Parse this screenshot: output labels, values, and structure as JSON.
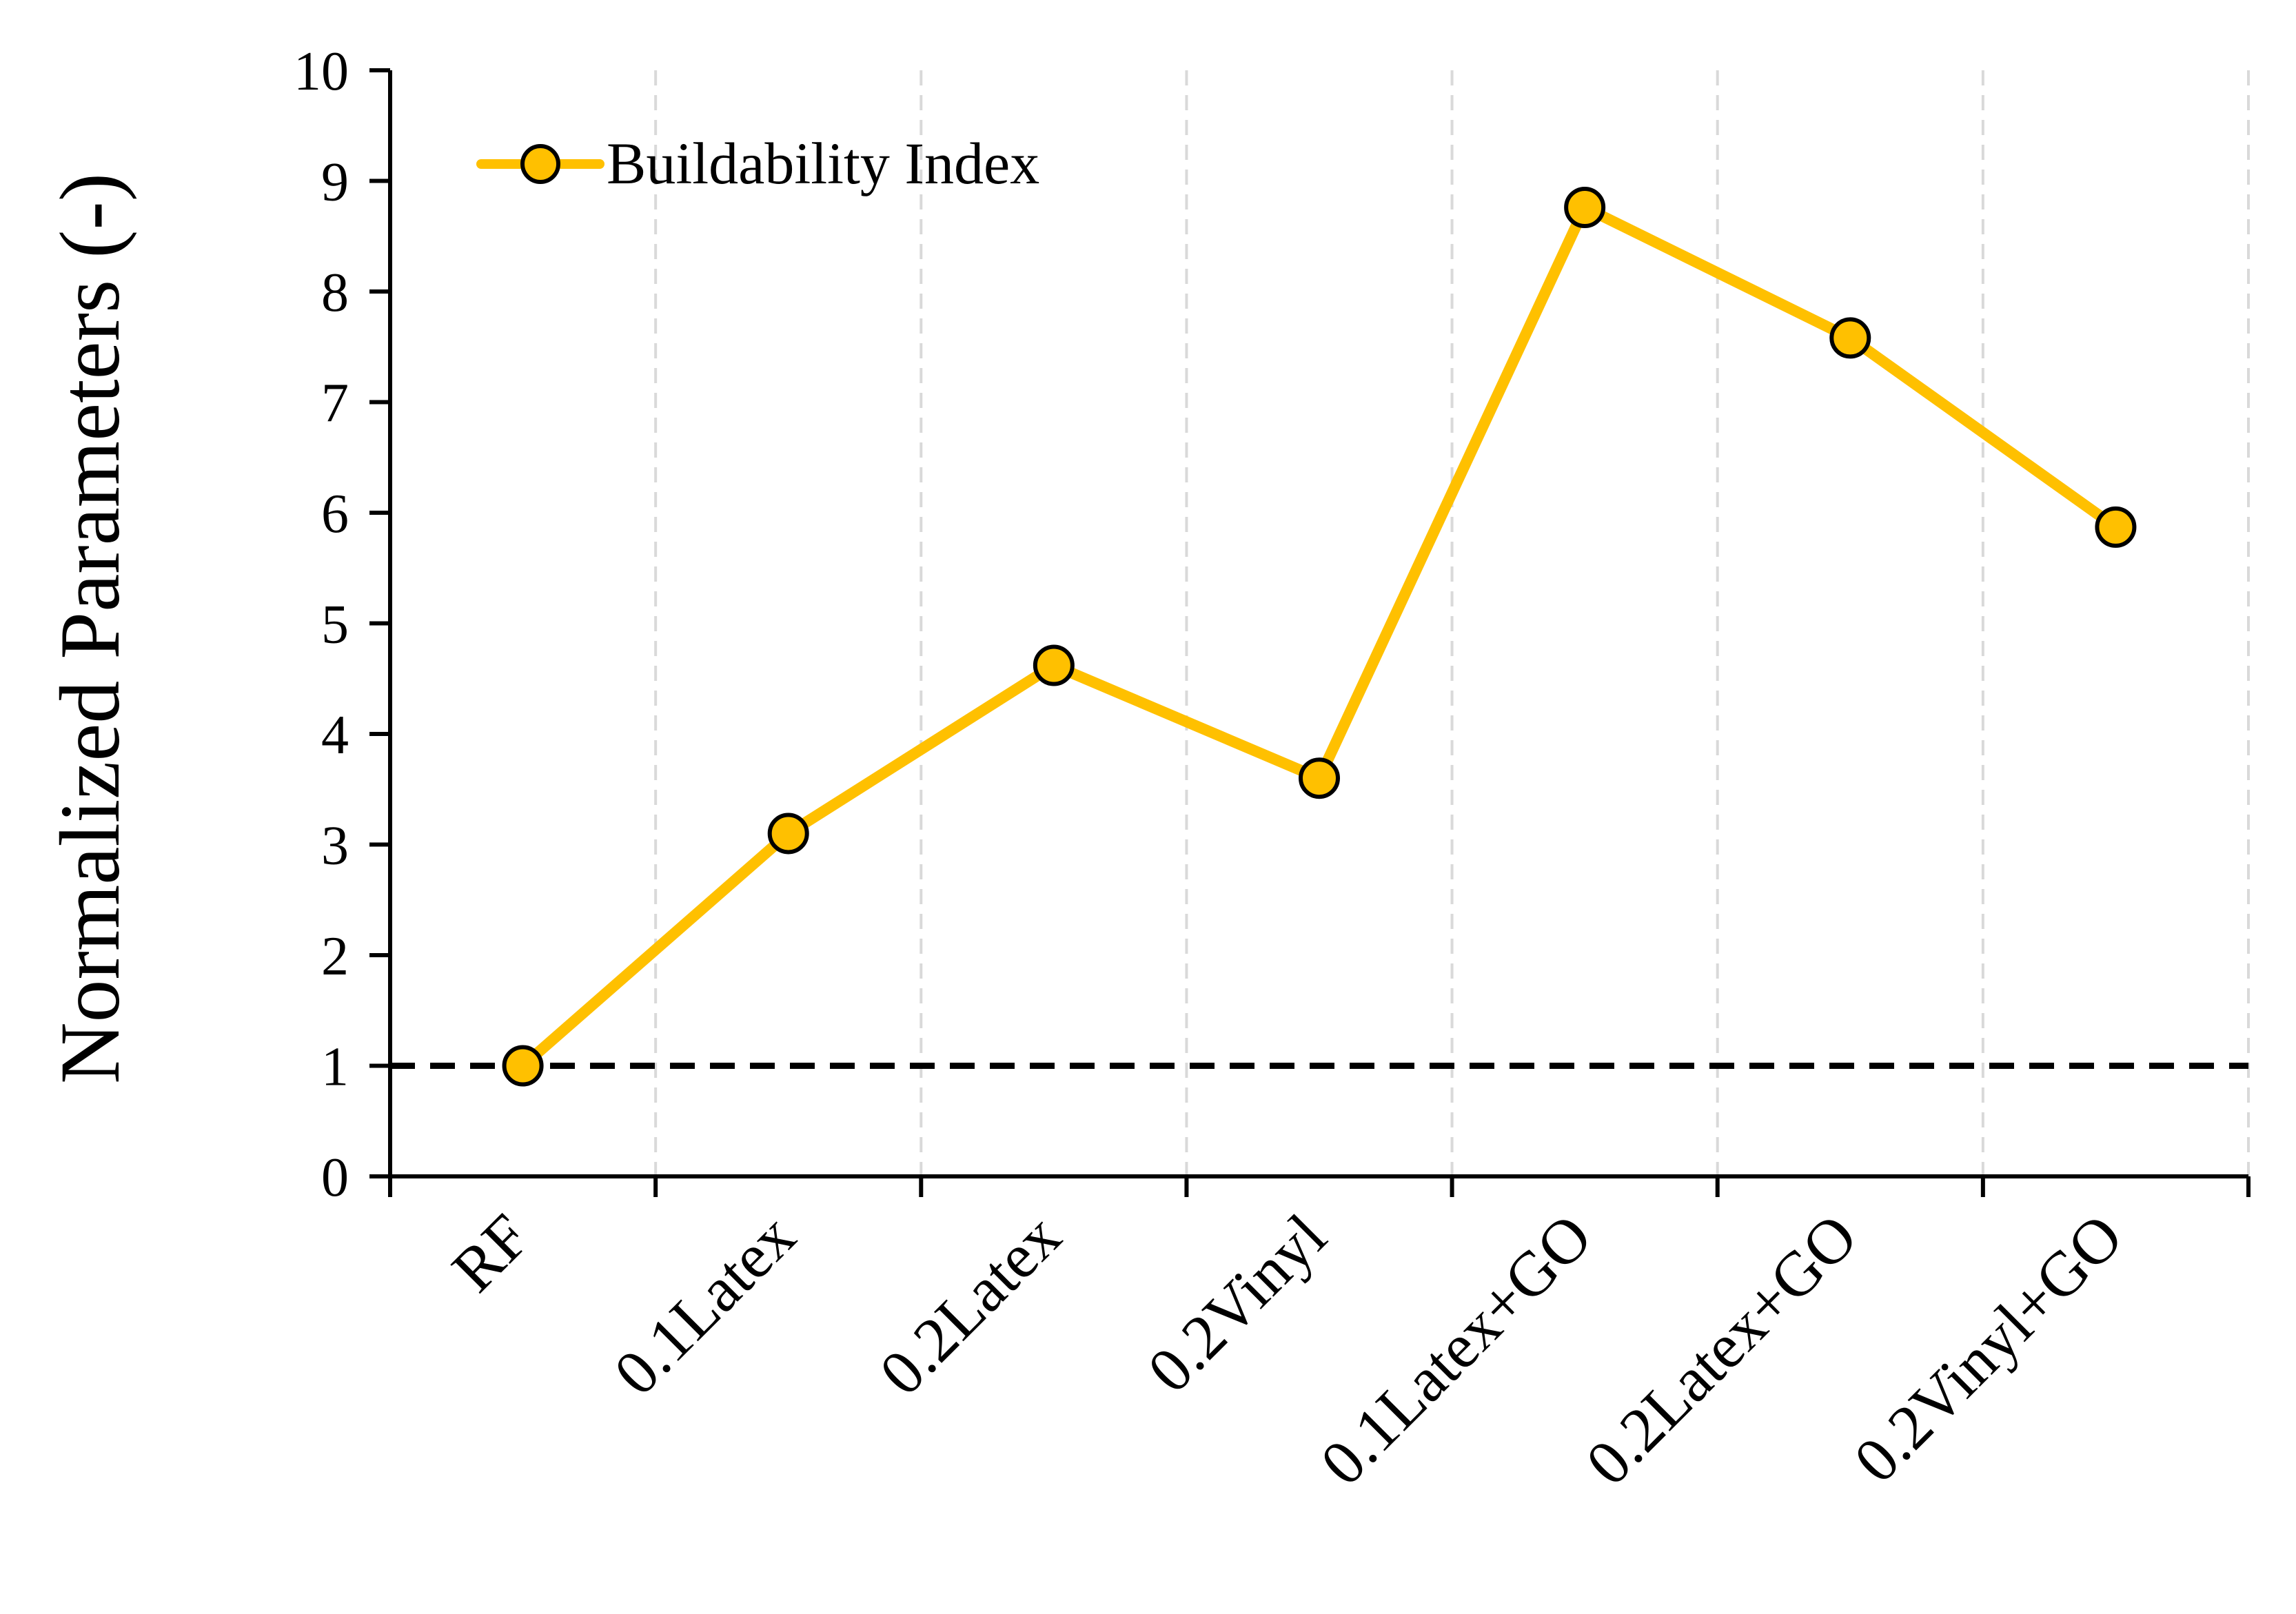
{
  "chart_data": {
    "type": "line",
    "title": "",
    "xlabel": "",
    "ylabel": "Normalized Parameters (-)",
    "ylim": [
      0,
      10
    ],
    "yticks": [
      "0",
      "1",
      "2",
      "3",
      "4",
      "5",
      "6",
      "7",
      "8",
      "9",
      "10"
    ],
    "categories": [
      "RF",
      "0.1Latex",
      "0.2Latex",
      "0.2Vinyl",
      "0.1Latex+GO",
      "0.2Latex+GO",
      "0.2Vinyl+GO"
    ],
    "series": [
      {
        "name": "Buildability Index",
        "values": [
          1.0,
          3.1,
          4.62,
          3.6,
          8.76,
          7.58,
          5.87
        ],
        "color": "#FFC000"
      }
    ],
    "reference_line": {
      "value": 1,
      "style": "dashed",
      "color": "#000000"
    },
    "grid": {
      "vertical": true,
      "horizontal": false,
      "color": "#D9D9D9"
    },
    "legend": {
      "position": "top-left"
    }
  }
}
